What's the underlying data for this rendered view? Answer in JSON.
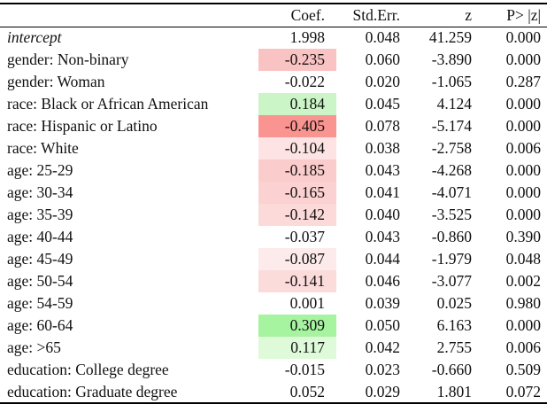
{
  "page": {
    "background": "#ffffff",
    "rule_color": "#000000",
    "text_color": "#111111"
  },
  "table": {
    "headers": {
      "label": "",
      "coef": "Coef.",
      "stderr": "Std.Err.",
      "z": "z",
      "p": "P> |z|"
    },
    "highlight_colors": {
      "strong_red": "#fa9490",
      "strong_green": "#a6f3a0"
    },
    "rows": [
      {
        "label": "intercept",
        "italic": true,
        "coef": "1.998",
        "stderr": "0.048",
        "z": "41.259",
        "p": "0.000",
        "coef_bg": null
      },
      {
        "label": "gender: Non-binary",
        "italic": false,
        "coef": "-0.235",
        "stderr": "0.060",
        "z": "-3.890",
        "p": "0.000",
        "coef_bg": "#fac3c3"
      },
      {
        "label": "gender: Woman",
        "italic": false,
        "coef": "-0.022",
        "stderr": "0.020",
        "z": "-1.065",
        "p": "0.287",
        "coef_bg": null
      },
      {
        "label": "race: Black or African American",
        "italic": false,
        "coef": "0.184",
        "stderr": "0.045",
        "z": "4.124",
        "p": "0.000",
        "coef_bg": "#cbf5c7"
      },
      {
        "label": "race: Hispanic or Latino",
        "italic": false,
        "coef": "-0.405",
        "stderr": "0.078",
        "z": "-5.174",
        "p": "0.000",
        "coef_bg": "#fa9490"
      },
      {
        "label": "race: White",
        "italic": false,
        "coef": "-0.104",
        "stderr": "0.038",
        "z": "-2.758",
        "p": "0.006",
        "coef_bg": "#fde3e3"
      },
      {
        "label": "age: 25-29",
        "italic": false,
        "coef": "-0.185",
        "stderr": "0.043",
        "z": "-4.268",
        "p": "0.000",
        "coef_bg": "#fbcccc"
      },
      {
        "label": "age: 30-34",
        "italic": false,
        "coef": "-0.165",
        "stderr": "0.041",
        "z": "-4.071",
        "p": "0.000",
        "coef_bg": "#fbd1d1"
      },
      {
        "label": "age: 35-39",
        "italic": false,
        "coef": "-0.142",
        "stderr": "0.040",
        "z": "-3.525",
        "p": "0.000",
        "coef_bg": "#fcdada"
      },
      {
        "label": "age: 40-44",
        "italic": false,
        "coef": "-0.037",
        "stderr": "0.043",
        "z": "-0.860",
        "p": "0.390",
        "coef_bg": null
      },
      {
        "label": "age: 45-49",
        "italic": false,
        "coef": "-0.087",
        "stderr": "0.044",
        "z": "-1.979",
        "p": "0.048",
        "coef_bg": "#fdebeb"
      },
      {
        "label": "age: 50-54",
        "italic": false,
        "coef": "-0.141",
        "stderr": "0.046",
        "z": "-3.077",
        "p": "0.002",
        "coef_bg": "#fcdbdb"
      },
      {
        "label": "age: 54-59",
        "italic": false,
        "coef": "0.001",
        "stderr": "0.039",
        "z": "0.025",
        "p": "0.980",
        "coef_bg": null
      },
      {
        "label": "age: 60-64",
        "italic": false,
        "coef": "0.309",
        "stderr": "0.050",
        "z": "6.163",
        "p": "0.000",
        "coef_bg": "#a6f3a0"
      },
      {
        "label": "age: >65",
        "italic": false,
        "coef": "0.117",
        "stderr": "0.042",
        "z": "2.755",
        "p": "0.006",
        "coef_bg": "#defad9"
      },
      {
        "label": "education: College degree",
        "italic": false,
        "coef": "-0.015",
        "stderr": "0.023",
        "z": "-0.660",
        "p": "0.509",
        "coef_bg": null
      },
      {
        "label": "education: Graduate degree",
        "italic": false,
        "coef": "0.052",
        "stderr": "0.029",
        "z": "1.801",
        "p": "0.072",
        "coef_bg": null
      }
    ]
  }
}
